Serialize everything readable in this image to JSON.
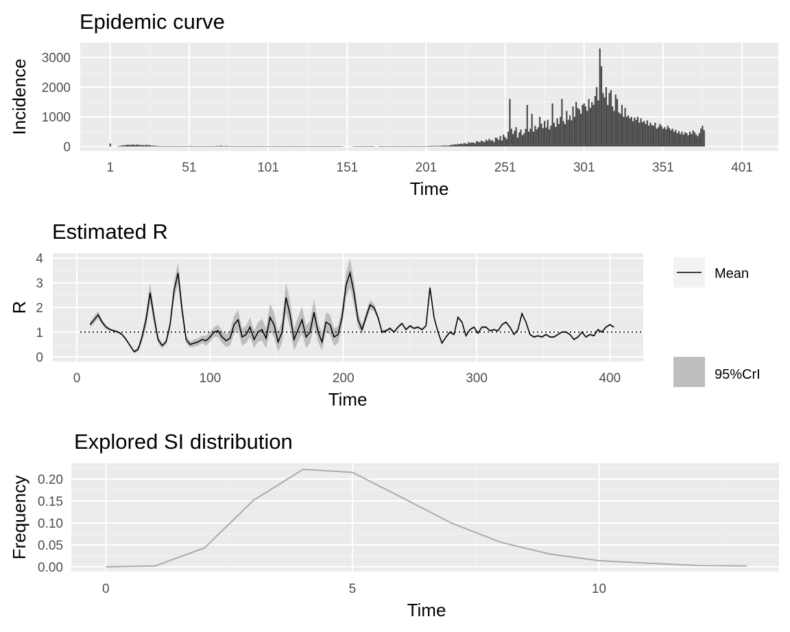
{
  "charts": [
    {
      "id": "epidemic",
      "title": "Epidemic curve",
      "xlabel": "Time",
      "ylabel": "Incidence",
      "xticks": [
        "1",
        "51",
        "101",
        "151",
        "201",
        "251",
        "301",
        "351",
        "401"
      ],
      "yticks": [
        "0",
        "1000",
        "2000",
        "3000"
      ]
    },
    {
      "id": "estimated-r",
      "title": "Estimated R",
      "xlabel": "Time",
      "ylabel": "R",
      "xticks": [
        "0",
        "100",
        "200",
        "300",
        "400"
      ],
      "yticks": [
        "0",
        "1",
        "2",
        "3",
        "4"
      ],
      "legend": {
        "mean": "Mean",
        "cri": "95%CrI"
      }
    },
    {
      "id": "si",
      "title": "Explored SI distribution",
      "xlabel": "Time",
      "ylabel": "Frequency",
      "xticks": [
        "0",
        "5",
        "10"
      ],
      "yticks": [
        "0.00",
        "0.05",
        "0.10",
        "0.15",
        "0.20"
      ]
    }
  ],
  "chart_data": [
    {
      "type": "bar",
      "title": "Epidemic curve",
      "xlabel": "Time",
      "ylabel": "Incidence",
      "xlim": [
        -18,
        424
      ],
      "ylim": [
        -150,
        3500
      ],
      "x_start": 1,
      "color": "#444444",
      "values": [
        100,
        0,
        0,
        0,
        0,
        10,
        20,
        30,
        40,
        40,
        50,
        60,
        60,
        50,
        70,
        60,
        50,
        70,
        50,
        60,
        40,
        50,
        40,
        60,
        40,
        50,
        30,
        30,
        30,
        20,
        20,
        15,
        15,
        10,
        10,
        10,
        10,
        10,
        5,
        5,
        5,
        5,
        5,
        5,
        5,
        5,
        5,
        5,
        5,
        5,
        5,
        20,
        10,
        5,
        5,
        5,
        5,
        5,
        5,
        5,
        5,
        5,
        5,
        5,
        5,
        5,
        5,
        20,
        20,
        10,
        30,
        20,
        10,
        20,
        20,
        15,
        10,
        10,
        10,
        10,
        10,
        10,
        10,
        5,
        5,
        5,
        5,
        5,
        5,
        5,
        5,
        5,
        5,
        5,
        5,
        5,
        5,
        5,
        5,
        5,
        5,
        5,
        5,
        5,
        5,
        5,
        5,
        5,
        5,
        5,
        5,
        5,
        5,
        5,
        5,
        5,
        5,
        5,
        5,
        5,
        5,
        5,
        10,
        10,
        10,
        10,
        10,
        5,
        5,
        10,
        10,
        5,
        5,
        5,
        5,
        5,
        10,
        10,
        10,
        10,
        10,
        5,
        10,
        10,
        10,
        10,
        10,
        10,
        0,
        0,
        0,
        0,
        0,
        0,
        10,
        10,
        10,
        10,
        10,
        5,
        5,
        5,
        5,
        5,
        10,
        10,
        10,
        10,
        0,
        0,
        10,
        10,
        10,
        10,
        10,
        10,
        10,
        10,
        10,
        5,
        5,
        5,
        5,
        10,
        10,
        10,
        10,
        10,
        10,
        10,
        10,
        10,
        10,
        10,
        5,
        5,
        5,
        5,
        5,
        10,
        10,
        10,
        20,
        20,
        20,
        20,
        20,
        20,
        20,
        20,
        30,
        30,
        30,
        30,
        30,
        40,
        60,
        50,
        80,
        60,
        90,
        80,
        100,
        80,
        120,
        100,
        90,
        150,
        120,
        140,
        130,
        110,
        180,
        160,
        140,
        200,
        170,
        150,
        230,
        190,
        260,
        200,
        210,
        150,
        300,
        280,
        220,
        350,
        200,
        400,
        320,
        250,
        500,
        1600,
        600,
        420,
        530,
        650,
        300,
        480,
        570,
        380,
        440,
        590,
        1400,
        500,
        600,
        1100,
        500,
        700,
        580,
        650,
        1000,
        770,
        620,
        860,
        640,
        900,
        580,
        700,
        1450,
        800,
        660,
        950,
        760,
        1000,
        1600,
        850,
        750,
        1200,
        900,
        1050,
        880,
        1350,
        1000,
        1500,
        1300,
        1250,
        1100,
        1400,
        1450,
        1350,
        1200,
        1600,
        1300,
        1500,
        1400,
        1700,
        2000,
        1550,
        3300,
        2700,
        1800,
        1650,
        2000,
        1400,
        1800,
        1900,
        1350,
        1200,
        1750,
        1600,
        1150,
        1100,
        1400,
        1000,
        1300,
        1000,
        1050,
        950,
        1000,
        850,
        980,
        900,
        1000,
        800,
        950,
        820,
        860,
        760,
        880,
        700,
        800,
        720,
        700,
        800,
        600,
        650,
        760,
        700,
        600,
        650,
        580,
        700,
        620,
        550,
        600,
        500,
        560,
        450,
        520,
        420,
        500,
        400,
        480,
        450,
        380,
        500,
        420,
        540,
        480,
        400,
        350,
        450,
        600,
        700,
        550
      ]
    },
    {
      "type": "line",
      "title": "Estimated R",
      "xlabel": "Time",
      "ylabel": "R",
      "xlim": [
        -18,
        425
      ],
      "ylim": [
        -0.2,
        4.2
      ],
      "reference_line": 1,
      "series": [
        {
          "name": "Mean",
          "x": [
            10,
            13,
            16,
            19,
            22,
            25,
            28,
            31,
            34,
            37,
            40,
            43,
            46,
            49,
            52,
            55,
            58,
            61,
            64,
            67,
            70,
            73,
            76,
            79,
            82,
            85,
            88,
            91,
            94,
            97,
            100,
            103,
            106,
            109,
            112,
            115,
            118,
            121,
            124,
            127,
            130,
            133,
            136,
            139,
            142,
            145,
            148,
            151,
            154,
            157,
            160,
            163,
            166,
            169,
            172,
            175,
            178,
            181,
            184,
            187,
            190,
            193,
            196,
            199,
            202,
            205,
            208,
            211,
            214,
            217,
            220,
            223,
            226,
            229,
            232,
            235,
            238,
            241,
            244,
            247,
            250,
            253,
            256,
            259,
            262,
            265,
            268,
            271,
            274,
            277,
            280,
            283,
            286,
            289,
            292,
            295,
            298,
            301,
            304,
            307,
            310,
            313,
            316,
            319,
            322,
            325,
            328,
            331,
            334,
            337,
            340,
            343,
            346,
            349,
            352,
            355,
            358,
            361,
            364,
            367,
            370,
            373,
            376,
            379,
            382,
            385,
            388,
            391,
            394,
            397,
            400,
            403
          ],
          "values": [
            1.3,
            1.5,
            1.7,
            1.4,
            1.2,
            1.1,
            1.05,
            1.0,
            0.9,
            0.7,
            0.45,
            0.2,
            0.3,
            0.8,
            1.5,
            2.6,
            1.6,
            0.7,
            0.45,
            0.6,
            1.3,
            2.7,
            3.4,
            1.9,
            0.7,
            0.5,
            0.55,
            0.6,
            0.7,
            0.65,
            0.8,
            1.0,
            1.05,
            0.8,
            0.65,
            0.75,
            1.3,
            1.5,
            0.8,
            0.9,
            1.2,
            0.7,
            1.0,
            1.1,
            0.75,
            1.6,
            1.3,
            0.6,
            1.0,
            2.4,
            1.7,
            0.7,
            1.1,
            1.5,
            0.8,
            1.0,
            1.8,
            1.0,
            0.6,
            1.4,
            1.3,
            0.8,
            0.9,
            1.6,
            2.9,
            3.4,
            2.6,
            1.5,
            1.1,
            1.6,
            2.1,
            2.0,
            1.6,
            1.0,
            1.05,
            1.15,
            1.0,
            1.2,
            1.35,
            1.1,
            1.25,
            1.15,
            1.2,
            1.1,
            1.25,
            2.8,
            1.6,
            1.0,
            0.55,
            0.8,
            1.0,
            0.9,
            1.6,
            1.4,
            0.85,
            1.1,
            1.2,
            0.95,
            1.2,
            1.2,
            1.05,
            1.1,
            1.05,
            1.3,
            1.4,
            1.2,
            0.9,
            1.1,
            1.75,
            1.4,
            0.9,
            0.8,
            0.85,
            0.8,
            0.9,
            0.8,
            0.8,
            0.9,
            1.0,
            1.0,
            0.9,
            0.7,
            0.8,
            1.0,
            0.8,
            0.9,
            0.85,
            1.1,
            1.0,
            1.2,
            1.3,
            1.2
          ]
        }
      ],
      "band_halfwidth": [
        0.12,
        0.15,
        0.15,
        0.1,
        0.08,
        0.05,
        0.05,
        0.05,
        0.05,
        0.05,
        0.05,
        0.05,
        0.1,
        0.2,
        0.3,
        0.4,
        0.3,
        0.15,
        0.1,
        0.1,
        0.2,
        0.35,
        0.45,
        0.3,
        0.15,
        0.12,
        0.15,
        0.15,
        0.15,
        0.2,
        0.2,
        0.2,
        0.25,
        0.25,
        0.25,
        0.3,
        0.35,
        0.4,
        0.35,
        0.35,
        0.4,
        0.35,
        0.4,
        0.45,
        0.4,
        0.55,
        0.5,
        0.4,
        0.45,
        0.6,
        0.55,
        0.45,
        0.5,
        0.55,
        0.45,
        0.45,
        0.55,
        0.4,
        0.35,
        0.4,
        0.4,
        0.35,
        0.35,
        0.4,
        0.5,
        0.6,
        0.5,
        0.3,
        0.2,
        0.2,
        0.2,
        0.15,
        0.1,
        0.08,
        0.06,
        0.06,
        0.05,
        0.05,
        0.05,
        0.05,
        0.05,
        0.05,
        0.05,
        0.05,
        0.05,
        0.1,
        0.08,
        0.05,
        0.05,
        0.05,
        0.05,
        0.05,
        0.05,
        0.05,
        0.04,
        0.04,
        0.04,
        0.04,
        0.04,
        0.04,
        0.04,
        0.04,
        0.04,
        0.04,
        0.04,
        0.04,
        0.04,
        0.04,
        0.04,
        0.04,
        0.04,
        0.04,
        0.04,
        0.04,
        0.04,
        0.04,
        0.04,
        0.04,
        0.04,
        0.04,
        0.04,
        0.04,
        0.04,
        0.04,
        0.04,
        0.04,
        0.04,
        0.04,
        0.04,
        0.04,
        0.04,
        0.04
      ],
      "line_color": "#000000",
      "band_color": "#bebebe"
    },
    {
      "type": "line",
      "title": "Explored SI distribution",
      "xlabel": "Time",
      "ylabel": "Frequency",
      "xlim": [
        -0.7,
        13.65
      ],
      "ylim": [
        -0.011,
        0.236
      ],
      "color": "#aaaaaa",
      "x": [
        0,
        1,
        2,
        3,
        4,
        5,
        6,
        7,
        8,
        9,
        10,
        11,
        12,
        13
      ],
      "values": [
        0.0,
        0.002,
        0.043,
        0.152,
        0.222,
        0.215,
        0.158,
        0.1,
        0.056,
        0.029,
        0.014,
        0.008,
        0.003,
        0.002
      ]
    }
  ]
}
